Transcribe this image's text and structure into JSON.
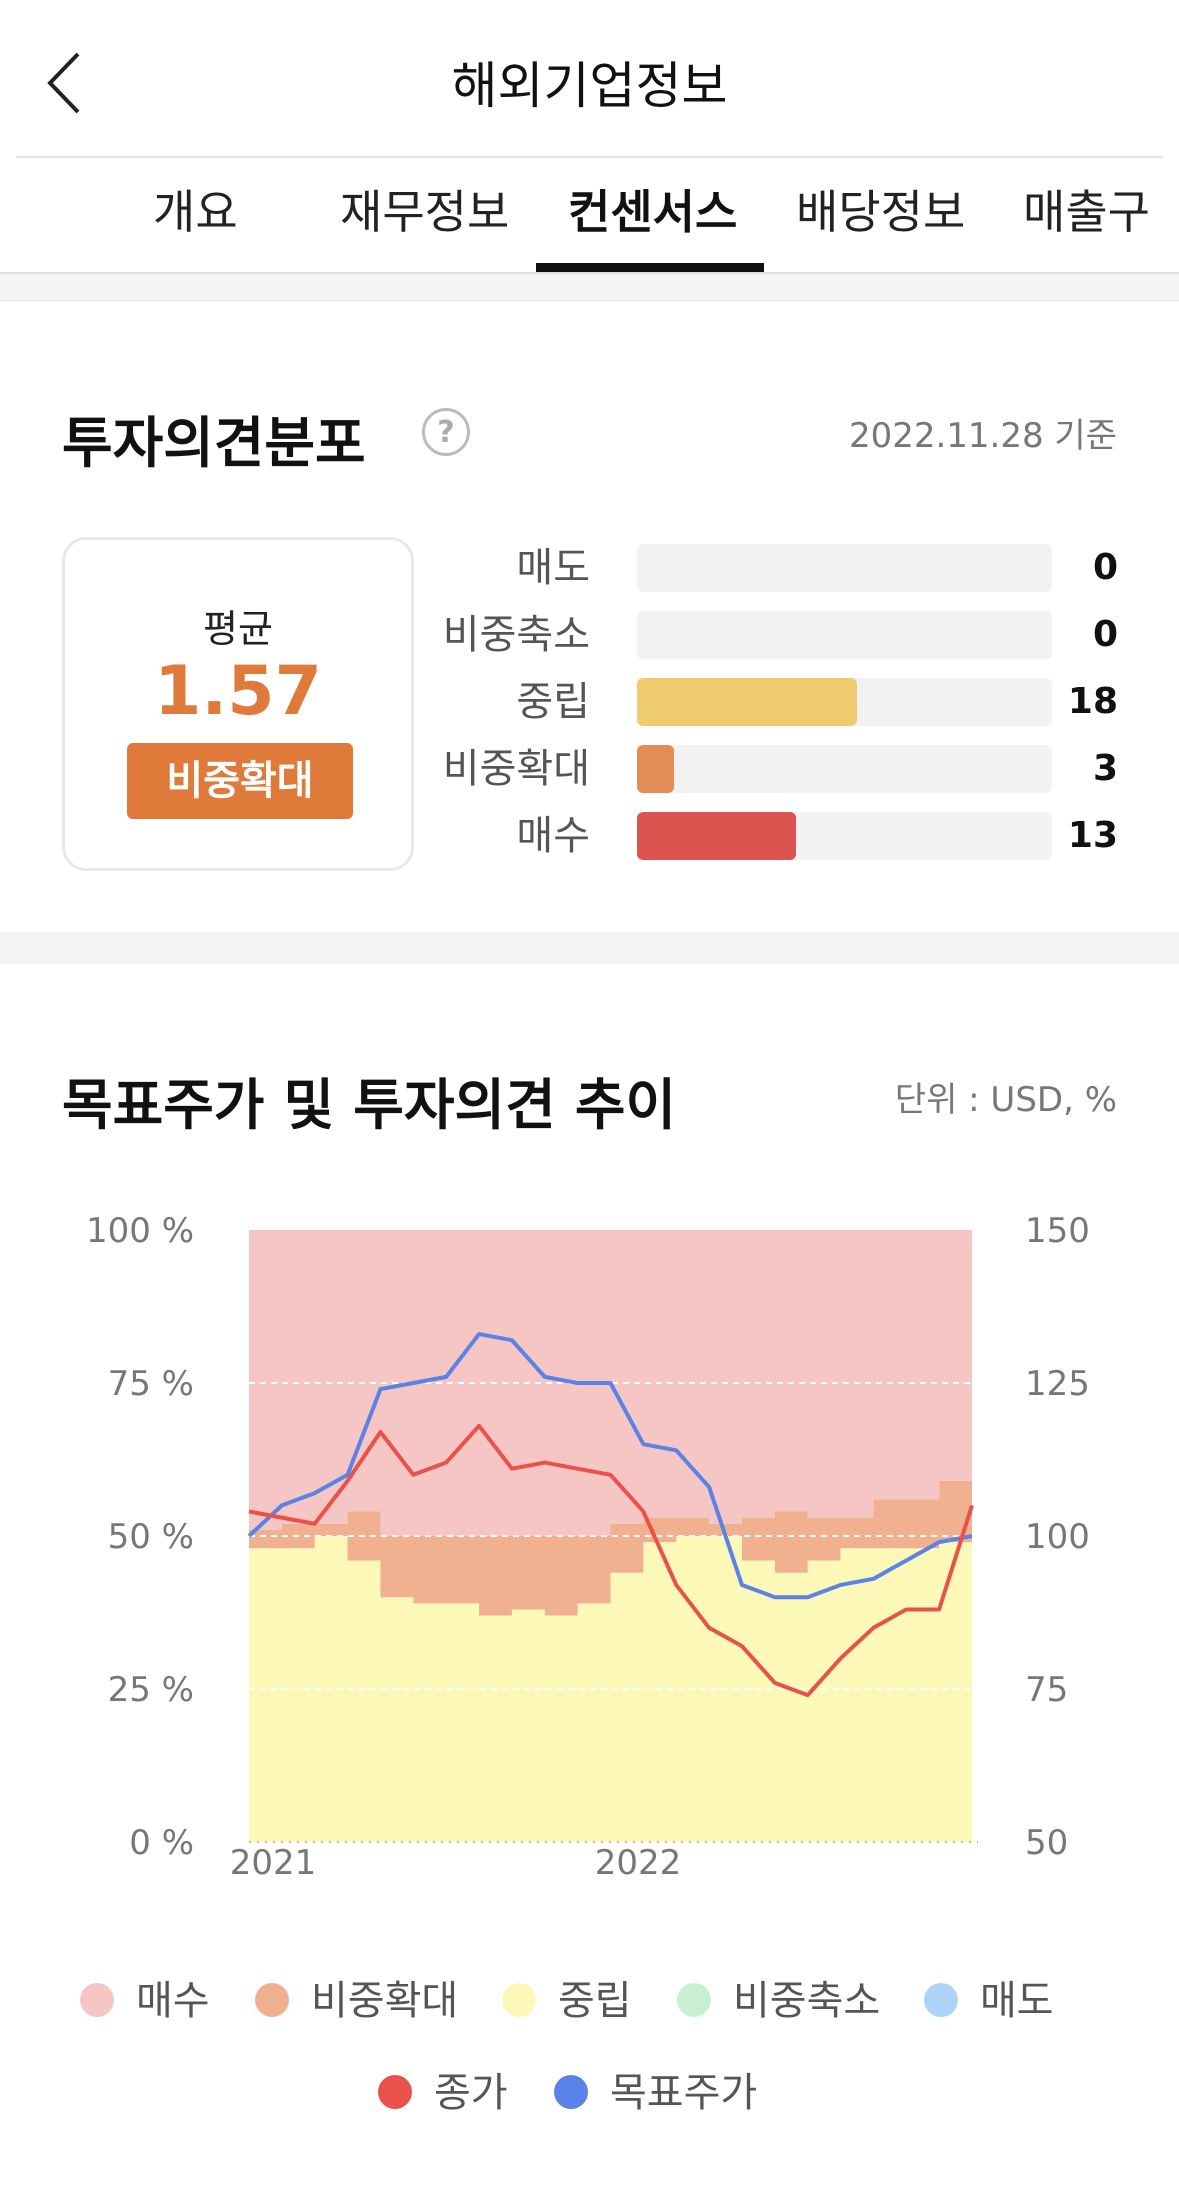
{
  "header": {
    "title": "해외기업정보",
    "back_icon": "chevron-left-icon"
  },
  "tabs": [
    {
      "label": "개요",
      "active": false
    },
    {
      "label": "재무정보",
      "active": false
    },
    {
      "label": "컨센서스",
      "active": true
    },
    {
      "label": "배당정보",
      "active": false
    },
    {
      "label": "매출구",
      "active": false
    }
  ],
  "opinion": {
    "title": "투자의견분포",
    "help_icon": "?",
    "date": "2022.11.28 기준",
    "average_label": "평균",
    "average_value": "1.57",
    "average_badge": "비중확대",
    "distribution": [
      {
        "label": "매도",
        "count": "0",
        "value": 0,
        "color": "#f2f2f2"
      },
      {
        "label": "비중축소",
        "count": "0",
        "value": 0,
        "color": "#f2f2f2"
      },
      {
        "label": "중립",
        "count": "18",
        "value": 18,
        "color": "#efcb70"
      },
      {
        "label": "비중확대",
        "count": "3",
        "value": 3,
        "color": "#e38c55"
      },
      {
        "label": "매수",
        "count": "13",
        "value": 13,
        "color": "#dc5350"
      }
    ]
  },
  "trend": {
    "title": "목표주가 및 투자의견 추이",
    "unit": "단위 : USD, %"
  },
  "chart_data": {
    "type": "area",
    "x": [
      "2021-01",
      "2021-02",
      "2021-03",
      "2021-04",
      "2021-05",
      "2021-06",
      "2021-07",
      "2021-08",
      "2021-09",
      "2021-10",
      "2021-11",
      "2021-12",
      "2022-01",
      "2022-02",
      "2022-03",
      "2022-04",
      "2022-05",
      "2022-06",
      "2022-07",
      "2022-08",
      "2022-09",
      "2022-10",
      "2022-11"
    ],
    "x_ticks": [
      "2021",
      "2022"
    ],
    "left_axis": {
      "ticks": [
        "100 %",
        "75 %",
        "50 %",
        "25 %",
        "0 %"
      ],
      "range": [
        0,
        100
      ]
    },
    "right_axis": {
      "ticks": [
        "150",
        "125",
        "100",
        "75",
        "50"
      ],
      "range": [
        50,
        150
      ]
    },
    "grid": "dashed at 25%, 50%, 75%",
    "colors": {
      "매수": "#f5c6c4",
      "비중확대": "#f1b190",
      "중립": "#fcf8b8",
      "비중축소": "#c9efd2",
      "매도": "#aed3f7",
      "종가": "#e8524a",
      "목표주가": "#5b82e6"
    },
    "series": [
      {
        "name": "중립",
        "values": [
          48,
          48,
          50,
          46,
          40,
          39,
          39,
          37,
          38,
          37,
          39,
          44,
          49,
          50,
          50,
          46,
          44,
          46,
          48,
          48,
          48,
          49,
          50
        ]
      },
      {
        "name": "비중확대",
        "values": [
          3,
          4,
          2,
          8,
          10,
          11,
          11,
          13,
          12,
          13,
          11,
          8,
          4,
          3,
          2,
          7,
          10,
          7,
          5,
          8,
          8,
          10,
          12
        ]
      },
      {
        "name": "매수",
        "values": [
          49,
          48,
          48,
          46,
          50,
          50,
          50,
          50,
          50,
          50,
          50,
          48,
          47,
          47,
          48,
          47,
          46,
          47,
          47,
          44,
          44,
          41,
          38
        ]
      },
      {
        "name": "비중축소",
        "values": [
          0,
          0,
          0,
          0,
          0,
          0,
          0,
          0,
          0,
          0,
          0,
          0,
          0,
          0,
          0,
          0,
          0,
          0,
          0,
          0,
          0,
          0,
          0
        ]
      },
      {
        "name": "매도",
        "values": [
          0,
          0,
          0,
          0,
          0,
          0,
          0,
          0,
          0,
          0,
          0,
          0,
          0,
          0,
          0,
          0,
          0,
          0,
          0,
          0,
          0,
          0,
          0
        ]
      },
      {
        "name": "종가",
        "axis": "right",
        "values": [
          104,
          103,
          102,
          109,
          117,
          110,
          112,
          118,
          111,
          112,
          111,
          110,
          104,
          92,
          85,
          82,
          76,
          74,
          80,
          85,
          88,
          88,
          105
        ]
      },
      {
        "name": "목표주가",
        "axis": "right",
        "values": [
          100,
          105,
          107,
          110,
          124,
          125,
          126,
          133,
          132,
          126,
          125,
          125,
          115,
          114,
          108,
          92,
          90,
          90,
          92,
          93,
          96,
          99,
          100
        ]
      }
    ],
    "legend": [
      "매수",
      "비중확대",
      "중립",
      "비중축소",
      "매도",
      "종가",
      "목표주가"
    ]
  }
}
